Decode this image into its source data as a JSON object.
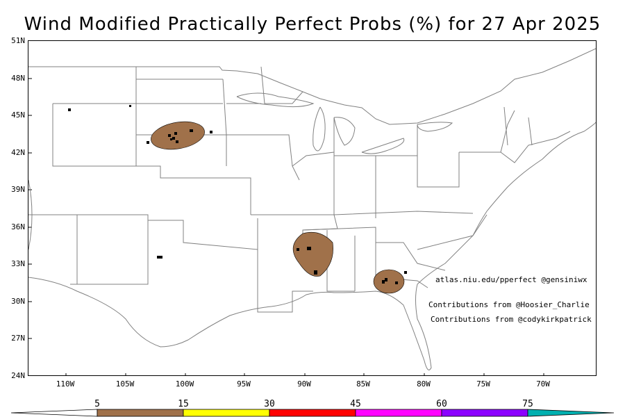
{
  "title": "Wind Modified Practically Perfect Probs (%) for 27 Apr 2025",
  "y_axis": {
    "labels": [
      "51N",
      "48N",
      "45N",
      "42N",
      "39N",
      "36N",
      "33N",
      "30N",
      "27N",
      "24N"
    ]
  },
  "x_axis": {
    "labels": [
      "110W",
      "105W",
      "100W",
      "95W",
      "90W",
      "85W",
      "80W",
      "75W",
      "70W"
    ]
  },
  "credits": {
    "site": "atlas.niu.edu/pperfect @gensiniwx",
    "contrib1": "Contributions from @Hoosier_Charlie",
    "contrib2": "Contributions from @codykirkpatrick"
  },
  "color_scale": {
    "labels": [
      "5",
      "15",
      "30",
      "45",
      "60",
      "75"
    ],
    "colors": [
      "#a0714a",
      "#ffff00",
      "#ff0000",
      "#ff00ff",
      "#8b00ff",
      "#00b0b0"
    ]
  },
  "probability_areas": [
    {
      "region": "South Dakota / Nebraska",
      "level": "5"
    },
    {
      "region": "Mississippi / Tennessee",
      "level": "5"
    },
    {
      "region": "Georgia",
      "level": "5"
    }
  ],
  "colors": {
    "state_lines": "#808080",
    "background": "#ffffff",
    "reports": "#000000"
  }
}
